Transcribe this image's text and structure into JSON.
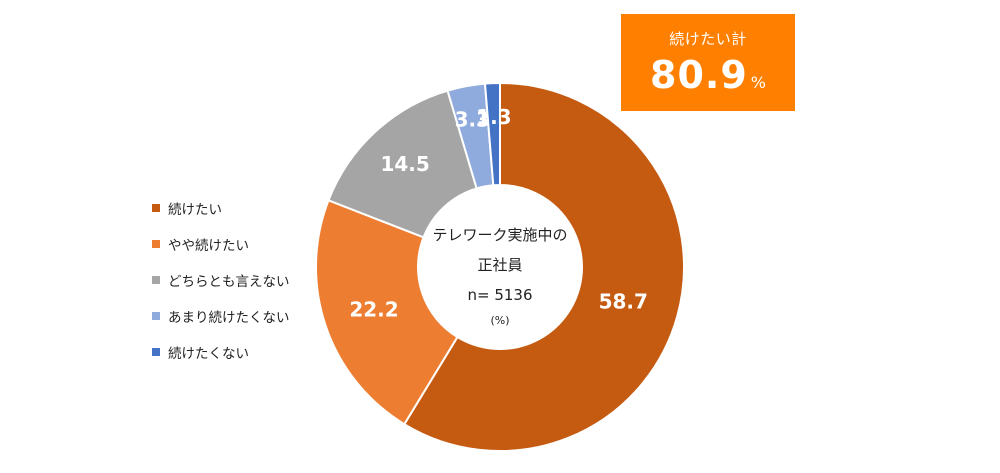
{
  "chart_data": {
    "type": "pie",
    "style": "donut",
    "categories": [
      "続けたい",
      "やや続けたい",
      "どちらとも言えない",
      "あまり続けたくない",
      "続けたくない"
    ],
    "values": [
      58.7,
      22.2,
      14.5,
      3.3,
      1.3
    ],
    "value_labels": [
      "58.7",
      "22.2",
      "14.5",
      "3.3",
      "1.3"
    ],
    "colors": [
      "#c55a11",
      "#ed7d31",
      "#a5a5a5",
      "#8faadc",
      "#4472c4"
    ],
    "center_text": {
      "line1": "テレワーク実施中の",
      "line2": "正社員",
      "line3": "n= 5136",
      "line4": "(%)"
    },
    "legend_position": "left",
    "start": "top",
    "direction": "clockwise"
  },
  "legend": {
    "items": [
      {
        "label": "続けたい",
        "color": "#c55a11"
      },
      {
        "label": "やや続けたい",
        "color": "#ed7d31"
      },
      {
        "label": "どちらとも言えない",
        "color": "#a5a5a5"
      },
      {
        "label": "あまり続けたくない",
        "color": "#8faadc"
      },
      {
        "label": "続けたくない",
        "color": "#4472c4"
      }
    ]
  },
  "summary_box": {
    "label": "続けたい計",
    "value": "80.9",
    "unit": "%",
    "color": "#ff8000"
  }
}
